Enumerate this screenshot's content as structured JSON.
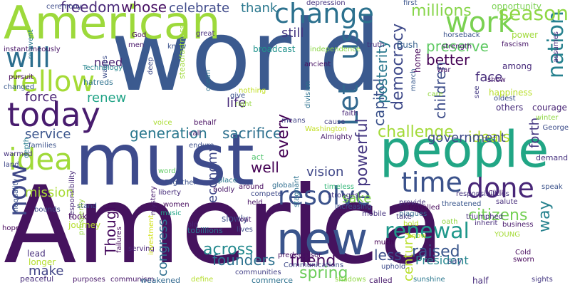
{
  "words": [
    {
      "text": "world",
      "color": "#3b5a8f"
    },
    {
      "text": "America",
      "color": "#45135e"
    },
    {
      "text": "must",
      "color": "#3e4b8c"
    },
    {
      "text": "American",
      "color": "#9dd93b"
    },
    {
      "text": "people",
      "color": "#21a685"
    },
    {
      "text": "today",
      "color": "#481c6e"
    },
    {
      "text": "change",
      "color": "#2c718e"
    },
    {
      "text": "fellow",
      "color": "#a5db36"
    },
    {
      "text": "will",
      "color": "#2c6e8e"
    },
    {
      "text": "work",
      "color": "#7ad151"
    },
    {
      "text": "us",
      "color": "#2f6b8e"
    },
    {
      "text": "Let",
      "color": "#31688e"
    },
    {
      "text": "time",
      "color": "#3b528b"
    },
    {
      "text": "done",
      "color": "#482677"
    },
    {
      "text": "idea",
      "color": "#a0da39"
    },
    {
      "text": "now",
      "color": "#3f4788"
    },
    {
      "text": "new",
      "color": "#3a548c"
    },
    {
      "text": "nation",
      "color": "#26818e"
    },
    {
      "text": "season",
      "color": "#8fd744"
    },
    {
      "text": "millions",
      "color": "#86d549"
    },
    {
      "text": "freedom",
      "color": "#482878"
    },
    {
      "text": "whose",
      "color": "#471063"
    },
    {
      "text": "celebrate",
      "color": "#3e4989"
    },
    {
      "text": "thank",
      "color": "#2a788e"
    },
    {
      "text": "resolve",
      "color": "#3b528b"
    },
    {
      "text": "renewal",
      "color": "#1f988b"
    },
    {
      "text": "generation",
      "color": "#2a788e"
    },
    {
      "text": "sacrifice",
      "color": "#2d708e"
    },
    {
      "text": "challenge",
      "color": "#a2da37"
    },
    {
      "text": "ideals",
      "color": "#b5de2b"
    },
    {
      "text": "forth",
      "color": "#453781"
    },
    {
      "text": "service",
      "color": "#3a548c"
    },
    {
      "text": "force",
      "color": "#482173"
    },
    {
      "text": "renew",
      "color": "#20a386"
    },
    {
      "text": "need",
      "color": "#481f70"
    },
    {
      "text": "mission",
      "color": "#a8db34"
    },
    {
      "text": "make",
      "color": "#414487"
    },
    {
      "text": "across",
      "color": "#23898e"
    },
    {
      "text": "founders",
      "color": "#2c718e"
    },
    {
      "text": "friend",
      "color": "#460b5e"
    },
    {
      "text": "spring",
      "color": "#6ccd5a"
    },
    {
      "text": "raised",
      "color": "#39568c"
    },
    {
      "text": "less",
      "color": "#3d4e8a"
    },
    {
      "text": "citizens",
      "color": "#75d054"
    },
    {
      "text": "sake",
      "color": "#7fd34e"
    },
    {
      "text": "vision",
      "color": "#3f4788"
    },
    {
      "text": "well",
      "color": "#440154"
    },
    {
      "text": "still",
      "color": "#453781"
    },
    {
      "text": "preserve",
      "color": "#5ec962"
    },
    {
      "text": "better",
      "color": "#440154"
    },
    {
      "text": "face",
      "color": "#472d7b"
    },
    {
      "text": "life",
      "color": "#482979"
    },
    {
      "text": "way",
      "color": "#26828e"
    },
    {
      "text": "every",
      "color": "#440154"
    },
    {
      "text": "capitol",
      "color": "#3b528b"
    },
    {
      "text": "posterity",
      "color": "#2a788e"
    },
    {
      "text": "democracy",
      "color": "#3e4989"
    },
    {
      "text": "powerful",
      "color": "#453781"
    },
    {
      "text": "children",
      "color": "#3d4d8a"
    },
    {
      "text": "government",
      "color": "#3e4a89"
    },
    {
      "text": "economy",
      "color": "#3f4889"
    },
    {
      "text": "Though",
      "color": "#460b5e"
    },
    {
      "text": "congress",
      "color": "#2e6e8e"
    },
    {
      "text": "century",
      "color": "#b8de29"
    },
    {
      "text": "President",
      "color": "#24868e"
    },
    {
      "text": "ceremony",
      "color": "#3e4c8a"
    },
    {
      "text": "depression",
      "color": "#46337f"
    },
    {
      "text": "first",
      "color": "#3a538b"
    },
    {
      "text": "opportunity",
      "color": "#7ad151"
    },
    {
      "text": "power",
      "color": "#a0da39"
    },
    {
      "text": "great",
      "color": "#472f7d"
    },
    {
      "text": "horseback",
      "color": "#3b518b"
    },
    {
      "text": "fascism",
      "color": "#481769"
    },
    {
      "text": "strength",
      "color": "#48186a"
    },
    {
      "text": "among",
      "color": "#472a7a"
    },
    {
      "text": "assumes",
      "color": "#4b2e81"
    },
    {
      "text": "wages",
      "color": "#3d4e8a"
    },
    {
      "text": "instantaneously",
      "color": "#481467"
    },
    {
      "text": "Technology",
      "color": "#25858e"
    },
    {
      "text": "hatreds",
      "color": "#2c718e"
    },
    {
      "text": "changed",
      "color": "#38588c"
    },
    {
      "text": "pursuit",
      "color": "#46085c"
    },
    {
      "text": "ancient",
      "color": "#471063"
    },
    {
      "text": "show",
      "color": "#48196b"
    },
    {
      "text": "happiness",
      "color": "#b8de29"
    },
    {
      "text": "oldest",
      "color": "#3c4f8a"
    },
    {
      "text": "others",
      "color": "#472d7b"
    },
    {
      "text": "courage",
      "color": "#482475"
    },
    {
      "text": "winter",
      "color": "#8fd744"
    },
    {
      "text": "George",
      "color": "#3d4d8a"
    },
    {
      "text": "demand",
      "color": "#46327e"
    },
    {
      "text": "see",
      "color": "#443983"
    },
    {
      "text": "knew",
      "color": "#3b528b"
    },
    {
      "text": "steadfastness",
      "color": "#9fda3a"
    },
    {
      "text": "deep",
      "color": "#3e4c8a"
    },
    {
      "text": "ocean",
      "color": "#2d708e"
    },
    {
      "text": "broadcast",
      "color": "#20928c"
    },
    {
      "text": "independence",
      "color": "#8bd646"
    },
    {
      "text": "truth",
      "color": "#472c7a"
    },
    {
      "text": "Bush",
      "color": "#355f8d"
    },
    {
      "text": "home",
      "color": "#46075a"
    },
    {
      "text": "War",
      "color": "#48186a"
    },
    {
      "text": "march",
      "color": "#37598c"
    },
    {
      "text": "care",
      "color": "#93d741"
    },
    {
      "text": "God",
      "color": "#460a5d"
    },
    {
      "text": "men",
      "color": "#481769"
    },
    {
      "text": "give",
      "color": "#3b528b"
    },
    {
      "text": "right",
      "color": "#95d840"
    },
    {
      "text": "nothing",
      "color": "#c2df23"
    },
    {
      "text": "voice",
      "color": "#aadc32"
    },
    {
      "text": "behalf",
      "color": "#470e61"
    },
    {
      "text": "call",
      "color": "#48186a"
    },
    {
      "text": "division",
      "color": "#2c718e"
    },
    {
      "text": "means",
      "color": "#414487"
    },
    {
      "text": "Washington",
      "color": "#c2df23"
    },
    {
      "text": "cause",
      "color": "#433e85"
    },
    {
      "text": "faith",
      "color": "#482576"
    },
    {
      "text": "Almighty",
      "color": "#481a6c"
    },
    {
      "text": "endure",
      "color": "#3c4f8a"
    },
    {
      "text": "warmed",
      "color": "#46337f"
    },
    {
      "text": "land",
      "color": "#3f4788"
    },
    {
      "text": "families",
      "color": "#3b528b"
    },
    {
      "text": "depth",
      "color": "#287c8e"
    },
    {
      "text": "reinvent",
      "color": "#2a768e"
    },
    {
      "text": "act",
      "color": "#4ec36b"
    },
    {
      "text": "word",
      "color": "#5ec962"
    },
    {
      "text": "Together",
      "color": "#3b528b"
    },
    {
      "text": "liberty",
      "color": "#472d7b"
    },
    {
      "text": "women",
      "color": "#460b5e"
    },
    {
      "text": "mystery",
      "color": "#481c6e"
    },
    {
      "text": "music",
      "color": "#20a386"
    },
    {
      "text": "responsibility",
      "color": "#482979"
    },
    {
      "text": "bounds",
      "color": "#3e4a89"
    },
    {
      "text": "inequality",
      "color": "#3a538b"
    },
    {
      "text": "place",
      "color": "#2a768e"
    },
    {
      "text": "boldly",
      "color": "#48186a"
    },
    {
      "text": "global",
      "color": "#2e6d8e"
    },
    {
      "text": "around",
      "color": "#460a5d"
    },
    {
      "text": "compete",
      "color": "#3e4a89"
    },
    {
      "text": "held",
      "color": "#481668"
    },
    {
      "text": "stagnant",
      "color": "#2c718e"
    },
    {
      "text": "timeless",
      "color": "#35b779"
    },
    {
      "text": "strongest",
      "color": "#453882"
    },
    {
      "text": "increasing",
      "color": "#3b528b"
    },
    {
      "text": "provide",
      "color": "#46327e"
    },
    {
      "text": "mobile",
      "color": "#46337f"
    },
    {
      "text": "plagues",
      "color": "#31688e"
    },
    {
      "text": "responsibilities",
      "color": "#45337f"
    },
    {
      "text": "Civil",
      "color": "#48196b"
    },
    {
      "text": "salute",
      "color": "#472d7b"
    },
    {
      "text": "speak",
      "color": "#3b528b"
    },
    {
      "text": "travelled",
      "color": "#46075a"
    },
    {
      "text": "threatened",
      "color": "#39568c"
    },
    {
      "text": "take",
      "color": "#44397f"
    },
    {
      "text": "triumphed",
      "color": "#472c7a"
    },
    {
      "text": "stand",
      "color": "#3b528b"
    },
    {
      "text": "slowly",
      "color": "#3c4f8a"
    },
    {
      "text": "took",
      "color": "#46085c"
    },
    {
      "text": "journey",
      "color": "#b5de2b"
    },
    {
      "text": "old",
      "color": "#482576"
    },
    {
      "text": "boat",
      "color": "#48196b"
    },
    {
      "text": "lives",
      "color": "#3e4a89"
    },
    {
      "text": "inherit",
      "color": "#472c7a"
    },
    {
      "text": "oath",
      "color": "#93d741"
    },
    {
      "text": "business",
      "color": "#48196b"
    },
    {
      "text": "bold",
      "color": "#b5de2b"
    },
    {
      "text": "YOUNG",
      "color": "#a5db36"
    },
    {
      "text": "hope",
      "color": "#46075a"
    },
    {
      "text": "prosperity",
      "color": "#98d83e"
    },
    {
      "text": "tobillions",
      "color": "#2c718e"
    },
    {
      "text": "know",
      "color": "#c8e020"
    },
    {
      "text": "much",
      "color": "#440154"
    },
    {
      "text": "Cold",
      "color": "#460a5d"
    },
    {
      "text": "lead",
      "color": "#472f7d"
    },
    {
      "text": "longer",
      "color": "#b5de2b"
    },
    {
      "text": "failures",
      "color": "#46085c"
    },
    {
      "text": "serving",
      "color": "#482475"
    },
    {
      "text": "investment",
      "color": "#d2e21b"
    },
    {
      "text": "predecessor",
      "color": "#470e61"
    },
    {
      "text": "Communications",
      "color": "#3e4a89"
    },
    {
      "text": "uphold",
      "color": "#3e4c8a"
    },
    {
      "text": "say",
      "color": "#3e4989"
    },
    {
      "text": "sworn",
      "color": "#46075a"
    },
    {
      "text": "peaceful",
      "color": "#472d7b"
    },
    {
      "text": "purposes",
      "color": "#48186a"
    },
    {
      "text": "communism",
      "color": "#48186a"
    },
    {
      "text": "weakened",
      "color": "#31688e"
    },
    {
      "text": "define",
      "color": "#b5de2b"
    },
    {
      "text": "communities",
      "color": "#424086"
    },
    {
      "text": "commerce",
      "color": "#2c718e"
    },
    {
      "text": "shadows",
      "color": "#8fd744"
    },
    {
      "text": "called",
      "color": "#481a6c"
    },
    {
      "text": "sunshine",
      "color": "#2a778e"
    },
    {
      "text": "half",
      "color": "#472d7b"
    },
    {
      "text": "sights",
      "color": "#453882"
    },
    {
      "text": "Revolution",
      "color": "#440154"
    },
    {
      "text": "unrivalled",
      "color": "#3d4e8a"
    }
  ]
}
